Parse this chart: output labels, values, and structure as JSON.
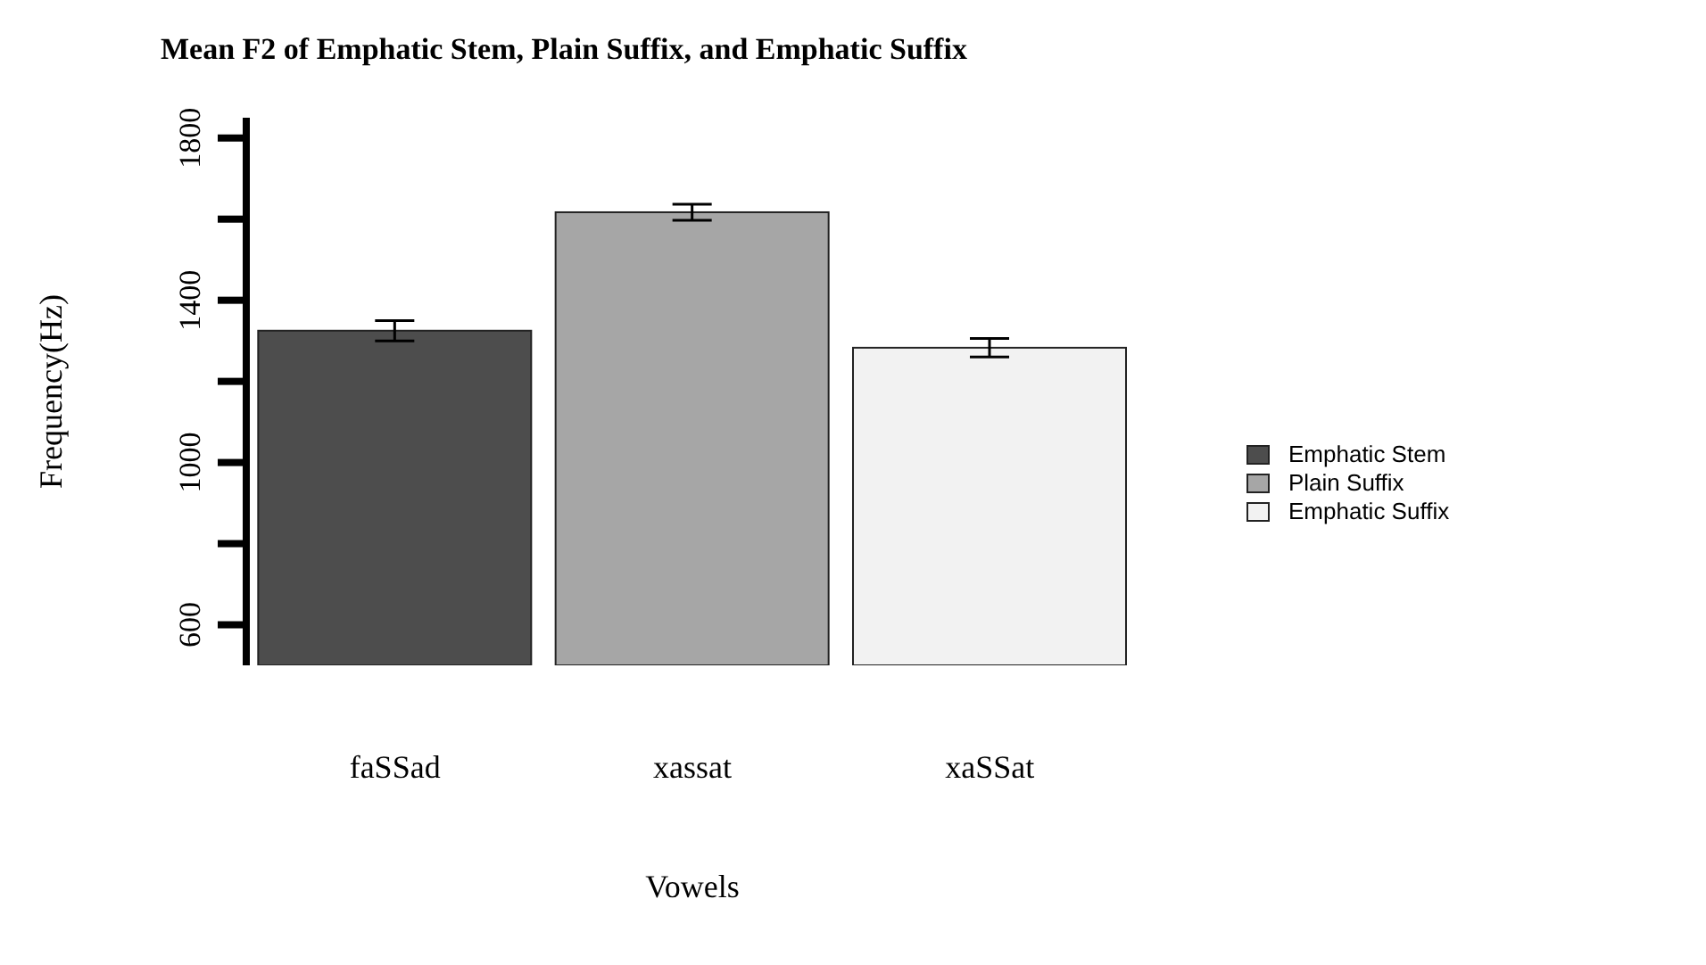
{
  "chart_data": {
    "type": "bar",
    "title": "Mean F2 of Emphatic Stem, Plain Suffix, and Emphatic Suffix",
    "xlabel": "Vowels",
    "ylabel": "Frequency(Hz)",
    "categories": [
      "faSSad",
      "xassat",
      "xaSSat"
    ],
    "series": [
      {
        "name": "Emphatic Stem",
        "color": "#4d4d4d",
        "values": [
          1325,
          null,
          null
        ],
        "errors": [
          25,
          null,
          null
        ]
      },
      {
        "name": "Plain Suffix",
        "color": "#a6a6a6",
        "values": [
          null,
          1617,
          null
        ],
        "errors": [
          null,
          20,
          null
        ]
      },
      {
        "name": "Emphatic Suffix",
        "color": "#f2f2f2",
        "values": [
          null,
          null,
          1283
        ],
        "errors": [
          null,
          null,
          23
        ]
      }
    ],
    "ylim": [
      500,
      1850
    ],
    "yticks": [
      600,
      {
        "value": 800,
        "label": null
      },
      1000,
      {
        "value": 1200,
        "label": null
      },
      1400,
      {
        "value": 1600,
        "label": null
      },
      1800
    ],
    "legend": "right",
    "grid": false
  }
}
